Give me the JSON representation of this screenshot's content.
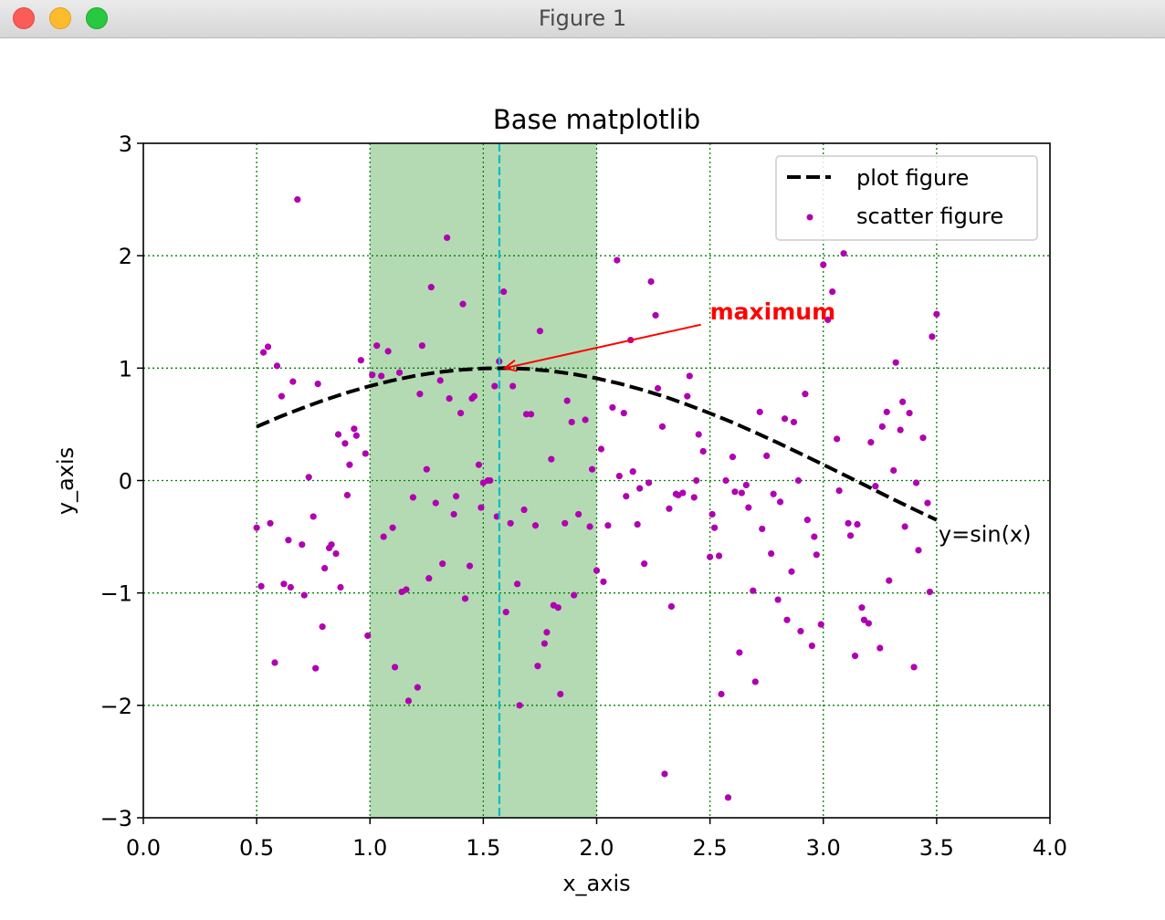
{
  "window": {
    "title": "Figure 1"
  },
  "colors": {
    "grid": "#008000",
    "span": "#4ca64c",
    "vline": "#00bfbf",
    "curve": "#000000",
    "points": "#b000b0",
    "annotation": "#ff0000"
  },
  "chart_data": {
    "type": "scatter",
    "title": "Base matplotlib",
    "xlabel": "x_axis",
    "ylabel": "y_axis",
    "xlim": [
      0,
      4
    ],
    "ylim": [
      -3,
      3
    ],
    "xticks": [
      0,
      0.5,
      1,
      1.5,
      2,
      2.5,
      3,
      3.5,
      4
    ],
    "xtick_labels": [
      "0.0",
      "0.5",
      "1.0",
      "1.5",
      "2.0",
      "2.5",
      "3.0",
      "3.5",
      "4.0"
    ],
    "yticks": [
      -3,
      -2,
      -1,
      0,
      1,
      2,
      3
    ],
    "ytick_labels": [
      "−3",
      "−2",
      "−1",
      "0",
      "1",
      "2",
      "3"
    ],
    "grid": true,
    "legend": {
      "position": "top-right",
      "entries": [
        {
          "label": "plot figure",
          "style": "dashed-line"
        },
        {
          "label": "scatter figure",
          "style": "marker"
        }
      ]
    },
    "shaded_span": {
      "x": [
        1.0,
        2.0
      ]
    },
    "vertical_line": {
      "x": 1.5708
    },
    "line_series": {
      "name": "plot figure",
      "label_text": "y=sin(x)",
      "x": [
        0.5,
        0.6,
        0.7,
        0.8,
        0.9,
        1.0,
        1.1,
        1.2,
        1.3,
        1.4,
        1.5,
        1.6,
        1.7,
        1.8,
        1.9,
        2.0,
        2.1,
        2.2,
        2.3,
        2.4,
        2.5,
        2.6,
        2.7,
        2.8,
        2.9,
        3.0,
        3.1,
        3.2,
        3.3,
        3.4,
        3.5
      ],
      "y": [
        0.479,
        0.565,
        0.644,
        0.717,
        0.783,
        0.841,
        0.891,
        0.932,
        0.964,
        0.985,
        0.997,
        1.0,
        0.992,
        0.974,
        0.946,
        0.909,
        0.863,
        0.808,
        0.746,
        0.675,
        0.598,
        0.516,
        0.427,
        0.335,
        0.239,
        0.141,
        0.042,
        -0.058,
        -0.158,
        -0.256,
        -0.351
      ]
    },
    "annotation": {
      "text": "maximum",
      "xy": [
        1.5708,
        1.0
      ],
      "xytext": [
        2.5,
        1.5
      ]
    },
    "scatter_series": {
      "name": "scatter figure",
      "points": [
        [
          0.5,
          -0.42
        ],
        [
          0.52,
          -0.94
        ],
        [
          0.53,
          1.14
        ],
        [
          0.55,
          1.19
        ],
        [
          0.56,
          -0.38
        ],
        [
          0.58,
          -1.62
        ],
        [
          0.59,
          1.02
        ],
        [
          0.61,
          0.75
        ],
        [
          0.62,
          -0.92
        ],
        [
          0.64,
          -0.53
        ],
        [
          0.65,
          -0.95
        ],
        [
          0.66,
          0.88
        ],
        [
          0.68,
          2.5
        ],
        [
          0.7,
          -0.57
        ],
        [
          0.71,
          -1.02
        ],
        [
          0.73,
          0.03
        ],
        [
          0.75,
          -0.32
        ],
        [
          0.76,
          -1.67
        ],
        [
          0.77,
          0.86
        ],
        [
          0.79,
          -1.3
        ],
        [
          0.8,
          -0.78
        ],
        [
          0.82,
          -0.6
        ],
        [
          0.83,
          -0.57
        ],
        [
          0.85,
          -0.65
        ],
        [
          0.86,
          0.41
        ],
        [
          0.87,
          -0.95
        ],
        [
          0.89,
          0.33
        ],
        [
          0.9,
          -0.13
        ],
        [
          0.91,
          0.14
        ],
        [
          0.93,
          0.46
        ],
        [
          0.94,
          0.4
        ],
        [
          0.96,
          1.07
        ],
        [
          0.98,
          0.24
        ],
        [
          0.99,
          -1.38
        ],
        [
          1.01,
          0.94
        ],
        [
          1.03,
          1.2
        ],
        [
          1.05,
          0.93
        ],
        [
          1.06,
          -0.5
        ],
        [
          1.08,
          1.15
        ],
        [
          1.1,
          -0.42
        ],
        [
          1.11,
          -1.66
        ],
        [
          1.13,
          0.96
        ],
        [
          1.14,
          -0.99
        ],
        [
          1.16,
          -0.97
        ],
        [
          1.17,
          -1.96
        ],
        [
          1.19,
          -0.15
        ],
        [
          1.21,
          -1.84
        ],
        [
          1.22,
          0.77
        ],
        [
          1.23,
          1.2
        ],
        [
          1.25,
          0.1
        ],
        [
          1.26,
          -0.87
        ],
        [
          1.27,
          1.72
        ],
        [
          1.29,
          -0.2
        ],
        [
          1.31,
          0.89
        ],
        [
          1.32,
          -0.74
        ],
        [
          1.34,
          2.16
        ],
        [
          1.35,
          0.73
        ],
        [
          1.37,
          -0.3
        ],
        [
          1.38,
          -0.14
        ],
        [
          1.4,
          0.6
        ],
        [
          1.41,
          1.57
        ],
        [
          1.42,
          -1.05
        ],
        [
          1.44,
          -0.76
        ],
        [
          1.45,
          0.73
        ],
        [
          1.46,
          0.75
        ],
        [
          1.48,
          0.14
        ],
        [
          1.49,
          -0.24
        ],
        [
          1.5,
          -0.02
        ],
        [
          1.52,
          0.0
        ],
        [
          1.53,
          0.0
        ],
        [
          1.55,
          0.84
        ],
        [
          1.56,
          -0.32
        ],
        [
          1.57,
          1.06
        ],
        [
          1.59,
          1.68
        ],
        [
          1.6,
          -1.17
        ],
        [
          1.62,
          -0.38
        ],
        [
          1.63,
          0.84
        ],
        [
          1.65,
          -0.92
        ],
        [
          1.66,
          -2.0
        ],
        [
          1.68,
          -0.26
        ],
        [
          1.69,
          0.59
        ],
        [
          1.71,
          0.59
        ],
        [
          1.73,
          -0.4
        ],
        [
          1.74,
          -1.65
        ],
        [
          1.75,
          1.33
        ],
        [
          1.77,
          -1.45
        ],
        [
          1.78,
          -1.35
        ],
        [
          1.8,
          0.19
        ],
        [
          1.81,
          -1.11
        ],
        [
          1.83,
          -1.13
        ],
        [
          1.84,
          -1.9
        ],
        [
          1.86,
          -0.38
        ],
        [
          1.87,
          0.71
        ],
        [
          1.89,
          0.52
        ],
        [
          1.9,
          -1.02
        ],
        [
          1.92,
          -0.3
        ],
        [
          1.95,
          0.54
        ],
        [
          1.97,
          -0.41
        ],
        [
          1.98,
          0.1
        ],
        [
          2.0,
          -0.8
        ],
        [
          2.02,
          0.28
        ],
        [
          2.03,
          -0.9
        ],
        [
          2.05,
          -0.4
        ],
        [
          2.07,
          0.65
        ],
        [
          2.09,
          1.96
        ],
        [
          2.1,
          0.04
        ],
        [
          2.12,
          0.6
        ],
        [
          2.13,
          -0.14
        ],
        [
          2.15,
          1.25
        ],
        [
          2.16,
          0.08
        ],
        [
          2.18,
          -0.39
        ],
        [
          2.19,
          -0.07
        ],
        [
          2.21,
          -0.74
        ],
        [
          2.23,
          -0.02
        ],
        [
          2.24,
          1.77
        ],
        [
          2.26,
          1.47
        ],
        [
          2.27,
          0.82
        ],
        [
          2.29,
          0.48
        ],
        [
          2.3,
          -2.61
        ],
        [
          2.32,
          -0.25
        ],
        [
          2.33,
          -1.12
        ],
        [
          2.35,
          -0.12
        ],
        [
          2.36,
          -0.13
        ],
        [
          2.38,
          -0.11
        ],
        [
          2.4,
          0.75
        ],
        [
          2.41,
          0.93
        ],
        [
          2.43,
          -0.15
        ],
        [
          2.44,
          0.0
        ],
        [
          2.45,
          0.41
        ],
        [
          2.47,
          0.26
        ],
        [
          2.5,
          -0.68
        ],
        [
          2.51,
          -0.3
        ],
        [
          2.52,
          -0.42
        ],
        [
          2.54,
          -0.67
        ],
        [
          2.55,
          -1.9
        ],
        [
          2.57,
          0.0
        ],
        [
          2.58,
          -2.82
        ],
        [
          2.6,
          0.21
        ],
        [
          2.61,
          -0.1
        ],
        [
          2.63,
          -1.53
        ],
        [
          2.64,
          -0.11
        ],
        [
          2.66,
          -0.04
        ],
        [
          2.67,
          -0.24
        ],
        [
          2.69,
          -0.98
        ],
        [
          2.7,
          -1.79
        ],
        [
          2.72,
          0.61
        ],
        [
          2.73,
          -0.43
        ],
        [
          2.75,
          0.22
        ],
        [
          2.77,
          -0.65
        ],
        [
          2.78,
          -0.12
        ],
        [
          2.8,
          -1.06
        ],
        [
          2.81,
          -0.19
        ],
        [
          2.83,
          0.55
        ],
        [
          2.84,
          -1.24
        ],
        [
          2.86,
          -0.81
        ],
        [
          2.87,
          0.52
        ],
        [
          2.89,
          0.0
        ],
        [
          2.9,
          -1.34
        ],
        [
          2.92,
          0.77
        ],
        [
          2.93,
          -0.35
        ],
        [
          2.95,
          -1.47
        ],
        [
          2.96,
          -0.5
        ],
        [
          2.97,
          -0.66
        ],
        [
          2.99,
          -1.28
        ],
        [
          3.0,
          1.92
        ],
        [
          3.02,
          1.43
        ],
        [
          3.04,
          1.68
        ],
        [
          3.06,
          0.37
        ],
        [
          3.07,
          -0.09
        ],
        [
          3.09,
          2.02
        ],
        [
          3.11,
          -0.38
        ],
        [
          3.12,
          -0.49
        ],
        [
          3.14,
          -1.56
        ],
        [
          3.15,
          -0.39
        ],
        [
          3.17,
          -1.13
        ],
        [
          3.18,
          -1.24
        ],
        [
          3.2,
          -1.27
        ],
        [
          3.21,
          0.34
        ],
        [
          3.23,
          -0.05
        ],
        [
          3.25,
          -1.49
        ],
        [
          3.26,
          0.48
        ],
        [
          3.28,
          0.61
        ],
        [
          3.29,
          -0.89
        ],
        [
          3.31,
          0.09
        ],
        [
          3.32,
          1.05
        ],
        [
          3.34,
          0.45
        ],
        [
          3.35,
          0.7
        ],
        [
          3.36,
          -0.41
        ],
        [
          3.38,
          0.6
        ],
        [
          3.4,
          -1.66
        ],
        [
          3.41,
          -0.02
        ],
        [
          3.42,
          -0.62
        ],
        [
          3.44,
          0.38
        ],
        [
          3.46,
          -0.2
        ],
        [
          3.47,
          -0.99
        ],
        [
          3.48,
          1.28
        ],
        [
          3.5,
          1.48
        ]
      ]
    }
  }
}
